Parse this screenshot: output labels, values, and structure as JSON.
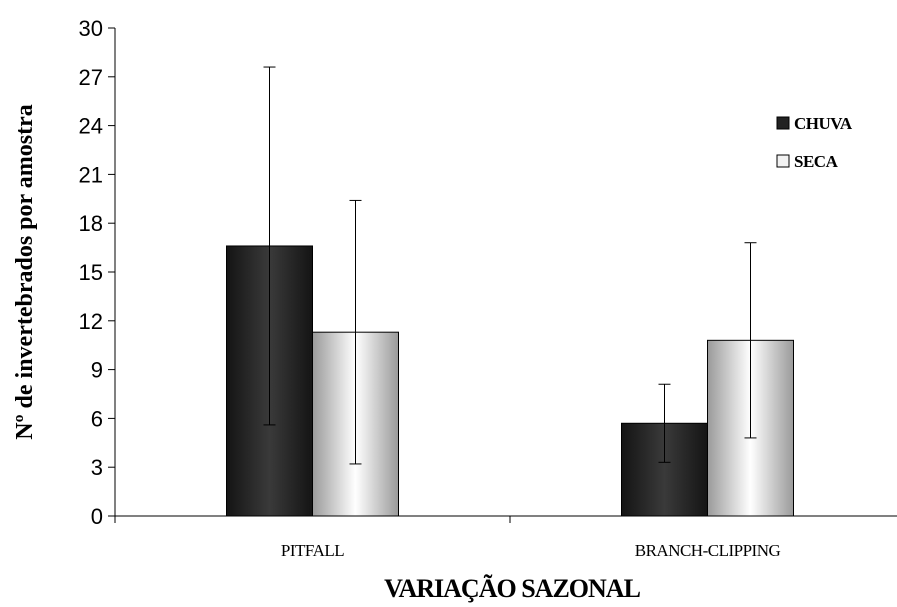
{
  "chart_data": {
    "type": "bar",
    "title": "",
    "xlabel": "VARIAÇÃO SAZONAL",
    "ylabel": "Nº de invertebrados por amostra",
    "categories": [
      "PITFALL",
      "BRANCH-CLIPPING"
    ],
    "series": [
      {
        "name": "CHUVA",
        "values": [
          16.6,
          5.7
        ],
        "error": [
          11.0,
          2.4
        ],
        "color": "#333333"
      },
      {
        "name": "SECA",
        "values": [
          11.3,
          10.8
        ],
        "error": [
          8.1,
          6.0
        ],
        "color": "#e8e8e8"
      }
    ],
    "ylim": [
      0,
      30
    ],
    "yticks": [
      0,
      3,
      6,
      9,
      12,
      15,
      18,
      21,
      24,
      27,
      30
    ],
    "grid": false,
    "legend_position": "top-right"
  }
}
